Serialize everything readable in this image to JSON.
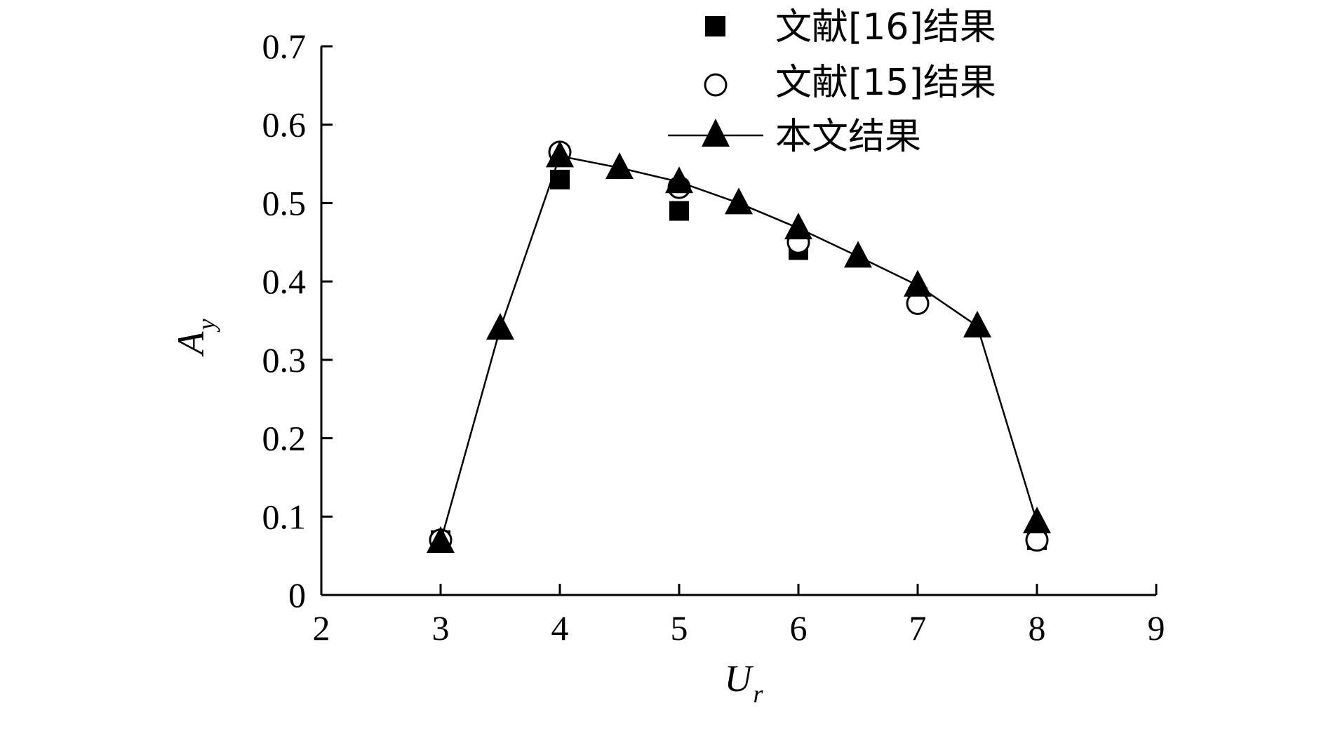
{
  "chart_data": {
    "type": "line",
    "xlabel": {
      "base": "U",
      "sub": "r"
    },
    "ylabel": {
      "base": "A",
      "sub": "y"
    },
    "xlim": [
      2,
      9
    ],
    "ylim": [
      0,
      0.7
    ],
    "xticks": [
      "2",
      "3",
      "4",
      "5",
      "6",
      "7",
      "8",
      "9"
    ],
    "yticks": [
      "0",
      "0.1",
      "0.2",
      "0.3",
      "0.4",
      "0.5",
      "0.6",
      "0.7"
    ],
    "grid": false,
    "legend_position": "top-right",
    "series": [
      {
        "name": "文献[16]结果",
        "marker": "filled-square",
        "line": false,
        "x": [
          3,
          4,
          5,
          6,
          7,
          8
        ],
        "y": [
          0.07,
          0.53,
          0.49,
          0.44,
          0.38,
          0.07
        ]
      },
      {
        "name": "文献[15]结果",
        "marker": "open-circle",
        "line": false,
        "x": [
          3,
          4,
          5,
          6,
          7,
          8
        ],
        "y": [
          0.07,
          0.565,
          0.52,
          0.45,
          0.372,
          0.07
        ]
      },
      {
        "name": "本文结果",
        "marker": "filled-triangle",
        "line": true,
        "x": [
          3,
          3.5,
          4,
          4.5,
          5,
          5.5,
          6,
          6.5,
          7,
          7.5,
          8
        ],
        "y": [
          0.068,
          0.34,
          0.56,
          0.545,
          0.527,
          0.5,
          0.468,
          0.432,
          0.395,
          0.343,
          0.093
        ]
      }
    ],
    "colors": {
      "ink": "#000000",
      "background": "#ffffff"
    }
  }
}
